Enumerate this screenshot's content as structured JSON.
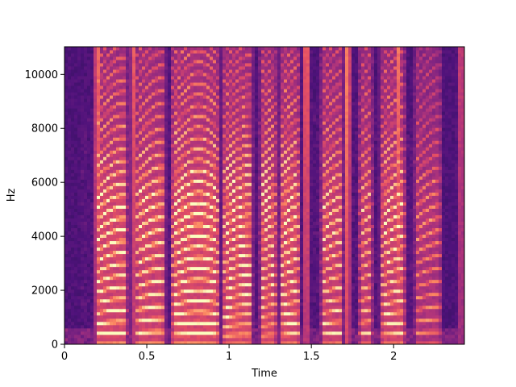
{
  "chart_data": {
    "type": "heatmap",
    "title": "",
    "xlabel": "Time",
    "ylabel": "Hz",
    "xlim": [
      0,
      2.43
    ],
    "ylim": [
      0,
      11025
    ],
    "x_ticks": [
      0,
      0.5,
      1,
      1.5,
      2
    ],
    "x_tick_labels": [
      "0",
      "0.5",
      "1",
      "1.5",
      "2"
    ],
    "y_ticks": [
      0,
      2000,
      4000,
      6000,
      8000,
      10000
    ],
    "y_tick_labels": [
      "0",
      "2000",
      "4000",
      "6000",
      "8000",
      "10000"
    ],
    "colormap": "magma",
    "colormap_stops": [
      "#000004",
      "#1c1044",
      "#4f127b",
      "#812581",
      "#b5367a",
      "#e55064",
      "#fb8761",
      "#fec287",
      "#fcfdbf"
    ],
    "grid": false,
    "legend": "none",
    "voiced_segments": [
      {
        "start": 0.18,
        "end": 0.39,
        "f0": 380,
        "strength": 0.92
      },
      {
        "start": 0.42,
        "end": 0.62,
        "f0": 420,
        "strength": 0.88
      },
      {
        "start": 0.64,
        "end": 0.95,
        "f0": 360,
        "strength": 0.97
      },
      {
        "start": 0.95,
        "end": 1.15,
        "f0": 330,
        "strength": 0.92
      },
      {
        "start": 1.18,
        "end": 1.3,
        "f0": 340,
        "strength": 0.86
      },
      {
        "start": 1.3,
        "end": 1.44,
        "f0": 360,
        "strength": 0.92
      },
      {
        "start": 1.55,
        "end": 1.7,
        "f0": 380,
        "strength": 0.82
      },
      {
        "start": 1.78,
        "end": 1.88,
        "f0": 400,
        "strength": 0.76
      },
      {
        "start": 1.91,
        "end": 2.08,
        "f0": 360,
        "strength": 0.86
      },
      {
        "start": 2.12,
        "end": 2.3,
        "f0": 420,
        "strength": 0.6
      }
    ],
    "broadband_bursts": [
      {
        "time": 0.2,
        "strength": 0.7
      },
      {
        "time": 0.42,
        "strength": 0.55
      },
      {
        "time": 1.47,
        "strength": 0.75
      },
      {
        "time": 1.72,
        "strength": 0.8
      },
      {
        "time": 2.03,
        "strength": 0.65
      },
      {
        "time": 2.41,
        "strength": 0.55
      }
    ],
    "silent_regions": [
      {
        "start": 0.0,
        "end": 0.1
      },
      {
        "start": 2.24,
        "end": 2.4
      }
    ]
  }
}
